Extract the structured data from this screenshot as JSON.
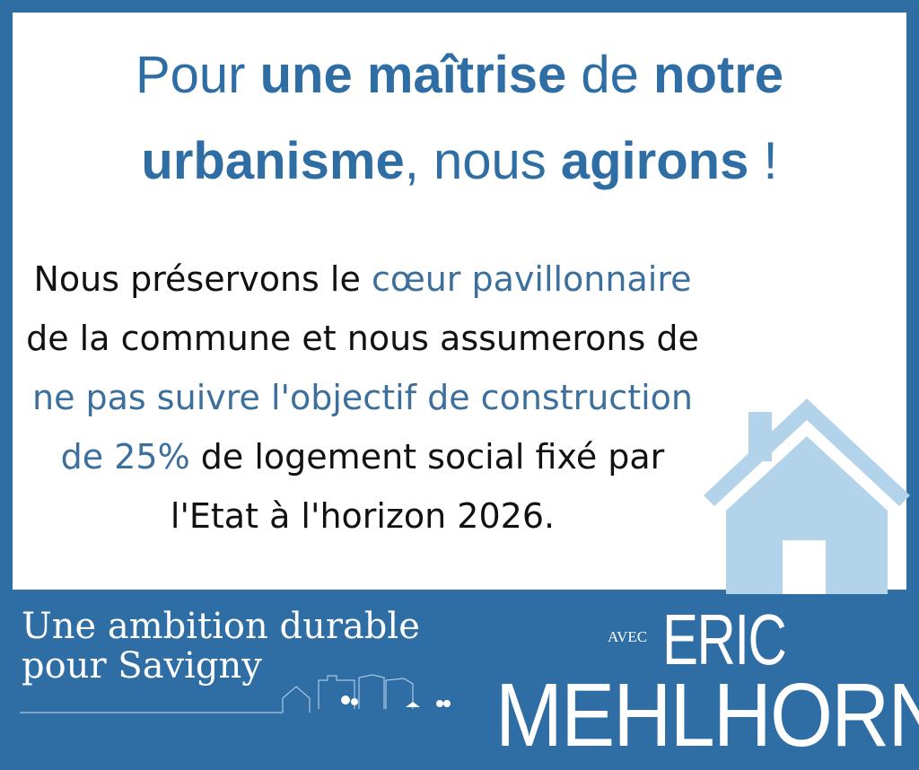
{
  "headline": {
    "part1": "Pour ",
    "part2": "une maîtrise",
    "part3": " de ",
    "part4": "notre urbanisme",
    "part5": ", nous ",
    "part6": "agirons",
    "part7": " !"
  },
  "body": {
    "t1": "Nous préservons le ",
    "h1": "cœur pavillonnaire",
    "t2": " de la commune et nous assumerons de ",
    "h2": "ne pas suivre l'objectif de construction de 25%",
    "t3": " de logement social fixé par l'Etat à l'horizon 2026."
  },
  "footer": {
    "slogan_line1": "Une ambition durable",
    "slogan_line2": "pour Savigny",
    "avec": "AVEC",
    "first_name": "ERIC",
    "last_name": "MEHLHORN"
  },
  "colors": {
    "brand_blue": "#2e6ea5",
    "highlight": "#3d6f9c",
    "house": "#b3d3ea"
  },
  "icons": [
    "house-icon",
    "town-skyline-icon"
  ]
}
